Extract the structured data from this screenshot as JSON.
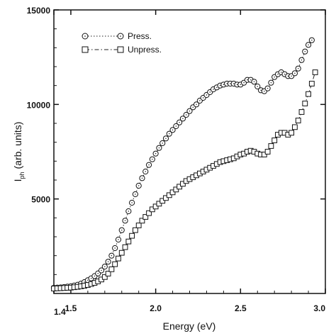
{
  "chart_data": {
    "type": "scatter",
    "xlabel": "Energy (eV)",
    "ylabel_main": "I",
    "ylabel_sub": "ph",
    "ylabel_rest": "(arb. units)",
    "xlim": [
      1.4,
      3.0
    ],
    "ylim": [
      0,
      15000
    ],
    "xticks": [
      1.4,
      1.5,
      2.0,
      2.5,
      3.0
    ],
    "xtick_labels": [
      "1.4",
      "1.5",
      "2.0",
      "2.5",
      "3.0"
    ],
    "yticks": [
      5000,
      10000,
      15000
    ],
    "ytick_labels": [
      "5000",
      "10000",
      "15000"
    ],
    "legend_position": "top-left",
    "series": [
      {
        "name": "Press.",
        "marker": "circle",
        "line": "dotted",
        "points": [
          [
            1.4,
            300
          ],
          [
            1.42,
            310
          ],
          [
            1.44,
            320
          ],
          [
            1.46,
            340
          ],
          [
            1.48,
            360
          ],
          [
            1.5,
            380
          ],
          [
            1.52,
            420
          ],
          [
            1.54,
            460
          ],
          [
            1.56,
            520
          ],
          [
            1.58,
            600
          ],
          [
            1.6,
            700
          ],
          [
            1.62,
            800
          ],
          [
            1.64,
            920
          ],
          [
            1.66,
            1060
          ],
          [
            1.68,
            1220
          ],
          [
            1.7,
            1420
          ],
          [
            1.72,
            1680
          ],
          [
            1.74,
            2000
          ],
          [
            1.76,
            2400
          ],
          [
            1.78,
            2850
          ],
          [
            1.8,
            3350
          ],
          [
            1.82,
            3850
          ],
          [
            1.84,
            4350
          ],
          [
            1.86,
            4800
          ],
          [
            1.88,
            5250
          ],
          [
            1.9,
            5700
          ],
          [
            1.92,
            6100
          ],
          [
            1.94,
            6450
          ],
          [
            1.96,
            6800
          ],
          [
            1.98,
            7100
          ],
          [
            2.0,
            7400
          ],
          [
            2.02,
            7700
          ],
          [
            2.04,
            7950
          ],
          [
            2.06,
            8200
          ],
          [
            2.08,
            8450
          ],
          [
            2.1,
            8650
          ],
          [
            2.12,
            8850
          ],
          [
            2.14,
            9050
          ],
          [
            2.16,
            9250
          ],
          [
            2.18,
            9450
          ],
          [
            2.2,
            9650
          ],
          [
            2.22,
            9850
          ],
          [
            2.24,
            10000
          ],
          [
            2.26,
            10200
          ],
          [
            2.28,
            10350
          ],
          [
            2.3,
            10500
          ],
          [
            2.32,
            10650
          ],
          [
            2.34,
            10800
          ],
          [
            2.36,
            10900
          ],
          [
            2.38,
            11000
          ],
          [
            2.4,
            11050
          ],
          [
            2.42,
            11100
          ],
          [
            2.44,
            11100
          ],
          [
            2.46,
            11100
          ],
          [
            2.48,
            11050
          ],
          [
            2.5,
            11050
          ],
          [
            2.52,
            11150
          ],
          [
            2.54,
            11300
          ],
          [
            2.56,
            11300
          ],
          [
            2.58,
            11200
          ],
          [
            2.6,
            10950
          ],
          [
            2.62,
            10750
          ],
          [
            2.64,
            10700
          ],
          [
            2.66,
            10850
          ],
          [
            2.68,
            11150
          ],
          [
            2.7,
            11450
          ],
          [
            2.72,
            11600
          ],
          [
            2.74,
            11700
          ],
          [
            2.76,
            11600
          ],
          [
            2.78,
            11500
          ],
          [
            2.8,
            11500
          ],
          [
            2.82,
            11650
          ],
          [
            2.84,
            11900
          ],
          [
            2.86,
            12350
          ],
          [
            2.88,
            12800
          ],
          [
            2.9,
            13150
          ],
          [
            2.92,
            13400
          ]
        ]
      },
      {
        "name": "Unpress.",
        "marker": "square",
        "line": "dash-dot",
        "points": [
          [
            1.4,
            260
          ],
          [
            1.42,
            270
          ],
          [
            1.44,
            280
          ],
          [
            1.46,
            290
          ],
          [
            1.48,
            300
          ],
          [
            1.5,
            310
          ],
          [
            1.52,
            330
          ],
          [
            1.54,
            350
          ],
          [
            1.56,
            380
          ],
          [
            1.58,
            410
          ],
          [
            1.6,
            450
          ],
          [
            1.62,
            500
          ],
          [
            1.64,
            560
          ],
          [
            1.66,
            640
          ],
          [
            1.68,
            740
          ],
          [
            1.7,
            870
          ],
          [
            1.72,
            1050
          ],
          [
            1.74,
            1280
          ],
          [
            1.76,
            1550
          ],
          [
            1.78,
            1850
          ],
          [
            1.8,
            2150
          ],
          [
            1.82,
            2450
          ],
          [
            1.84,
            2750
          ],
          [
            1.86,
            3050
          ],
          [
            1.88,
            3350
          ],
          [
            1.9,
            3600
          ],
          [
            1.92,
            3850
          ],
          [
            1.94,
            4050
          ],
          [
            1.96,
            4250
          ],
          [
            1.98,
            4450
          ],
          [
            2.0,
            4600
          ],
          [
            2.02,
            4750
          ],
          [
            2.04,
            4900
          ],
          [
            2.06,
            5050
          ],
          [
            2.08,
            5200
          ],
          [
            2.1,
            5350
          ],
          [
            2.12,
            5500
          ],
          [
            2.14,
            5650
          ],
          [
            2.16,
            5800
          ],
          [
            2.18,
            5950
          ],
          [
            2.2,
            6050
          ],
          [
            2.22,
            6150
          ],
          [
            2.24,
            6250
          ],
          [
            2.26,
            6350
          ],
          [
            2.28,
            6450
          ],
          [
            2.3,
            6550
          ],
          [
            2.32,
            6650
          ],
          [
            2.34,
            6750
          ],
          [
            2.36,
            6850
          ],
          [
            2.38,
            6950
          ],
          [
            2.4,
            7000
          ],
          [
            2.42,
            7050
          ],
          [
            2.44,
            7100
          ],
          [
            2.46,
            7150
          ],
          [
            2.48,
            7250
          ],
          [
            2.5,
            7350
          ],
          [
            2.52,
            7400
          ],
          [
            2.54,
            7500
          ],
          [
            2.56,
            7550
          ],
          [
            2.58,
            7500
          ],
          [
            2.6,
            7400
          ],
          [
            2.62,
            7350
          ],
          [
            2.64,
            7350
          ],
          [
            2.66,
            7500
          ],
          [
            2.68,
            7800
          ],
          [
            2.7,
            8100
          ],
          [
            2.72,
            8400
          ],
          [
            2.74,
            8500
          ],
          [
            2.76,
            8500
          ],
          [
            2.78,
            8400
          ],
          [
            2.8,
            8500
          ],
          [
            2.82,
            8800
          ],
          [
            2.84,
            9150
          ],
          [
            2.86,
            9600
          ],
          [
            2.88,
            10050
          ],
          [
            2.9,
            10550
          ],
          [
            2.92,
            11100
          ],
          [
            2.94,
            11700
          ]
        ]
      }
    ]
  }
}
